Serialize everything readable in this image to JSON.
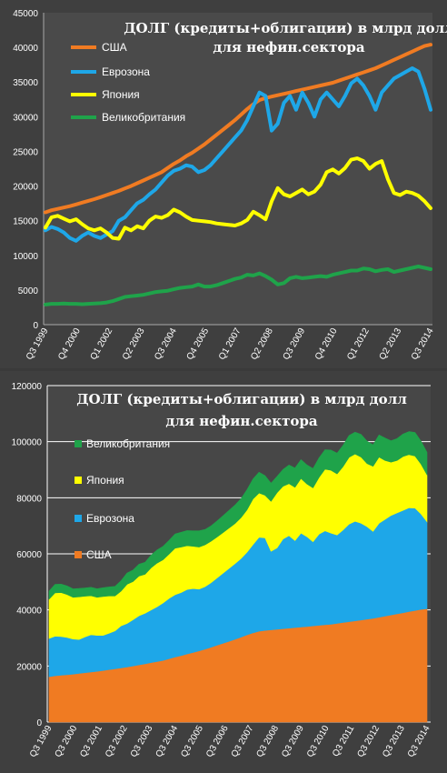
{
  "chart_data": [
    {
      "type": "line",
      "title": "ДОЛГ (кредиты+облигации) в млрд долл для нефин.сектора",
      "title_lines": [
        "ДОЛГ (кредиты+облигации) в млрд долл",
        "для нефин.сектора"
      ],
      "ylim": [
        0,
        45000
      ],
      "yticks": [
        0,
        5000,
        10000,
        15000,
        20000,
        25000,
        30000,
        35000,
        40000,
        45000
      ],
      "xlabels": [
        "Q3 1999",
        "Q4 2000",
        "Q1 2002",
        "Q2 2003",
        "Q3 2004",
        "Q4 2005",
        "Q1 2007",
        "Q2 2008",
        "Q3 2009",
        "Q4 2010",
        "Q1 2012",
        "Q2 2013",
        "Q3 2014"
      ],
      "x_start": "Q3 1999",
      "x_end": "Q4 2014",
      "grid": false,
      "legend_position": "top-left",
      "series": [
        {
          "name": "США",
          "color": "#f07b22",
          "values": [
            16200,
            16500,
            16700,
            16900,
            17100,
            17350,
            17600,
            17850,
            18100,
            18400,
            18700,
            19000,
            19300,
            19650,
            20000,
            20400,
            20800,
            21200,
            21600,
            22000,
            22600,
            23200,
            23700,
            24300,
            24800,
            25400,
            26000,
            26700,
            27400,
            28100,
            28800,
            29500,
            30300,
            31100,
            31800,
            32400,
            32700,
            32900,
            33100,
            33300,
            33500,
            33700,
            33900,
            34100,
            34300,
            34500,
            34700,
            34900,
            35200,
            35500,
            35800,
            36100,
            36400,
            36700,
            37000,
            37400,
            37800,
            38200,
            38600,
            39000,
            39400,
            39800,
            40200,
            40400
          ]
        },
        {
          "name": "Еврозона",
          "color": "#1ea7e8",
          "values": [
            13600,
            14100,
            13800,
            13300,
            12500,
            12100,
            12800,
            13300,
            12800,
            12500,
            13000,
            13500,
            15000,
            15500,
            16500,
            17500,
            18000,
            18800,
            19500,
            20500,
            21500,
            22200,
            22500,
            23000,
            22800,
            22000,
            22300,
            23000,
            24000,
            25000,
            26000,
            27000,
            28000,
            29500,
            31500,
            33500,
            33000,
            28000,
            29000,
            32000,
            33000,
            31000,
            33500,
            32000,
            30000,
            32500,
            33500,
            32500,
            31500,
            33000,
            34800,
            35500,
            34500,
            33000,
            31000,
            33500,
            34500,
            35500,
            36000,
            36500,
            37000,
            36500,
            34000,
            31000
          ]
        },
        {
          "name": "Япония",
          "color": "#ffff00",
          "values": [
            14000,
            15500,
            15700,
            15300,
            14900,
            15200,
            14500,
            13900,
            13600,
            13900,
            13300,
            12500,
            12400,
            14000,
            13600,
            14200,
            13900,
            15000,
            15600,
            15400,
            15800,
            16600,
            16200,
            15600,
            15100,
            15000,
            14900,
            14800,
            14600,
            14500,
            14400,
            14300,
            14600,
            15100,
            16300,
            15800,
            15200,
            17800,
            19700,
            18800,
            18500,
            19000,
            19500,
            18800,
            19200,
            20200,
            22000,
            22400,
            21800,
            22600,
            23800,
            24000,
            23600,
            22500,
            23200,
            23600,
            21000,
            19000,
            18700,
            19200,
            19000,
            18600,
            17800,
            16800
          ]
        },
        {
          "name": "Великобритания",
          "color": "#1fa34a",
          "values": [
            2900,
            3000,
            3000,
            3050,
            3000,
            3000,
            2950,
            3000,
            3050,
            3100,
            3200,
            3400,
            3700,
            4000,
            4100,
            4200,
            4300,
            4500,
            4700,
            4800,
            4900,
            5100,
            5300,
            5400,
            5500,
            5800,
            5500,
            5500,
            5700,
            6000,
            6300,
            6600,
            6800,
            7200,
            7100,
            7400,
            7000,
            6500,
            5800,
            6000,
            6700,
            6900,
            6700,
            6800,
            6900,
            7000,
            6900,
            7200,
            7400,
            7600,
            7800,
            7800,
            8100,
            8000,
            7700,
            7900,
            8000,
            7600,
            7800,
            8000,
            8200,
            8400,
            8200,
            8000
          ]
        }
      ]
    },
    {
      "type": "area",
      "stacked": true,
      "title": "ДОЛГ (кредиты+облигации) в млрд долл для нефин.сектора",
      "title_lines": [
        "ДОЛГ (кредиты+облигации) в млрд долл",
        "для нефин.сектора"
      ],
      "ylim": [
        0,
        120000
      ],
      "yticks": [
        0,
        20000,
        40000,
        60000,
        80000,
        100000,
        120000
      ],
      "xlabels": [
        "Q3 1999",
        "Q3 2000",
        "Q3 2001",
        "Q3 2002",
        "Q3 2003",
        "Q3 2004",
        "Q3 2005",
        "Q3 2006",
        "Q3 2007",
        "Q3 2008",
        "Q3 2009",
        "Q3 2010",
        "Q3 2011",
        "Q3 2012",
        "Q3 2013",
        "Q3 2014"
      ],
      "x_start": "Q3 1999",
      "x_end": "Q4 2014",
      "grid": true,
      "legend_position": "left",
      "legend_order": [
        "Великобритания",
        "Япония",
        "Еврозона",
        "США"
      ],
      "series": [
        {
          "name": "США",
          "color": "#f07b22",
          "values": [
            16200,
            16500,
            16700,
            16900,
            17100,
            17350,
            17600,
            17850,
            18100,
            18400,
            18700,
            19000,
            19300,
            19650,
            20000,
            20400,
            20800,
            21200,
            21600,
            22000,
            22600,
            23200,
            23700,
            24300,
            24800,
            25400,
            26000,
            26700,
            27400,
            28100,
            28800,
            29500,
            30300,
            31100,
            31800,
            32400,
            32700,
            32900,
            33100,
            33300,
            33500,
            33700,
            33900,
            34100,
            34300,
            34500,
            34700,
            34900,
            35200,
            35500,
            35800,
            36100,
            36400,
            36700,
            37000,
            37400,
            37800,
            38200,
            38600,
            39000,
            39400,
            39800,
            40200,
            40400
          ]
        },
        {
          "name": "Еврозона",
          "color": "#1ea7e8",
          "values": [
            13600,
            14100,
            13800,
            13300,
            12500,
            12100,
            12800,
            13300,
            12800,
            12500,
            13000,
            13500,
            15000,
            15500,
            16500,
            17500,
            18000,
            18800,
            19500,
            20500,
            21500,
            22200,
            22500,
            23000,
            22800,
            22000,
            22300,
            23000,
            24000,
            25000,
            26000,
            27000,
            28000,
            29500,
            31500,
            33500,
            33000,
            28000,
            29000,
            32000,
            33000,
            31000,
            33500,
            32000,
            30000,
            32500,
            33500,
            32500,
            31500,
            33000,
            34800,
            35500,
            34500,
            33000,
            31000,
            33500,
            34500,
            35500,
            36000,
            36500,
            37000,
            36500,
            34000,
            31000
          ]
        },
        {
          "name": "Япония",
          "color": "#ffff00",
          "values": [
            14000,
            15500,
            15700,
            15300,
            14900,
            15200,
            14500,
            13900,
            13600,
            13900,
            13300,
            12500,
            12400,
            14000,
            13600,
            14200,
            13900,
            15000,
            15600,
            15400,
            15800,
            16600,
            16200,
            15600,
            15100,
            15000,
            14900,
            14800,
            14600,
            14500,
            14400,
            14300,
            14600,
            15100,
            16300,
            15800,
            15200,
            17800,
            19700,
            18800,
            18500,
            19000,
            19500,
            18800,
            19200,
            20200,
            22000,
            22400,
            21800,
            22600,
            23800,
            24000,
            23600,
            22500,
            23200,
            23600,
            21000,
            19000,
            18700,
            19200,
            19000,
            18600,
            17800,
            16800
          ]
        },
        {
          "name": "Великобритания",
          "color": "#1fa34a",
          "values": [
            2900,
            3000,
            3000,
            3050,
            3000,
            3000,
            2950,
            3000,
            3050,
            3100,
            3200,
            3400,
            3700,
            4000,
            4100,
            4200,
            4300,
            4500,
            4700,
            4800,
            4900,
            5100,
            5300,
            5400,
            5500,
            5800,
            5500,
            5500,
            5700,
            6000,
            6300,
            6600,
            6800,
            7200,
            7100,
            7400,
            7000,
            6500,
            5800,
            6000,
            6700,
            6900,
            6700,
            6800,
            6900,
            7000,
            6900,
            7200,
            7400,
            7600,
            7800,
            7800,
            8100,
            8000,
            7700,
            7900,
            8000,
            7600,
            7800,
            8000,
            8200,
            8400,
            8200,
            8000
          ]
        }
      ]
    }
  ]
}
